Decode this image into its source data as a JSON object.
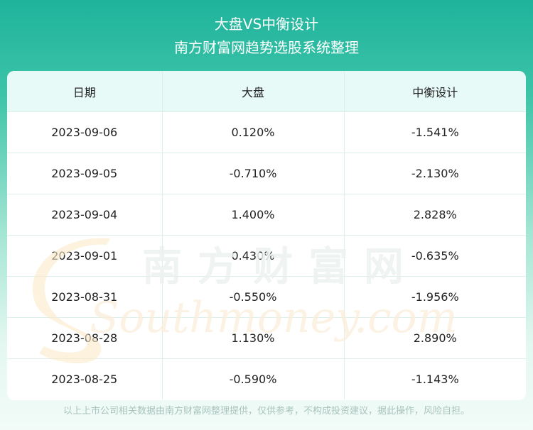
{
  "header": {
    "title": "大盘VS中衡设计",
    "subtitle": "南方财富网趋势选股系统整理"
  },
  "table": {
    "columns": [
      "日期",
      "大盘",
      "中衡设计"
    ],
    "rows": [
      [
        "2023-09-06",
        "0.120%",
        "-1.541%"
      ],
      [
        "2023-09-05",
        "-0.710%",
        "-2.130%"
      ],
      [
        "2023-09-04",
        "1.400%",
        "2.828%"
      ],
      [
        "2023-09-01",
        "0.430%",
        "-0.635%"
      ],
      [
        "2023-08-31",
        "-0.550%",
        "-1.956%"
      ],
      [
        "2023-08-28",
        "1.130%",
        "2.890%"
      ],
      [
        "2023-08-25",
        "-0.590%",
        "-1.143%"
      ]
    ]
  },
  "watermark": {
    "cn": "南方财富网",
    "en": "Southmoney.com"
  },
  "footer": {
    "disclaimer": "以上上市公司相关数据由南方财富网整理提供，仅供参考，不构成投资建议，据此操作，风险自担。"
  },
  "colors": {
    "header_gradient_top": "#1fb39c",
    "table_header_bg": "#e8faf7",
    "grid_line": "#dcefe9",
    "footer_text": "#a9c4bd"
  }
}
